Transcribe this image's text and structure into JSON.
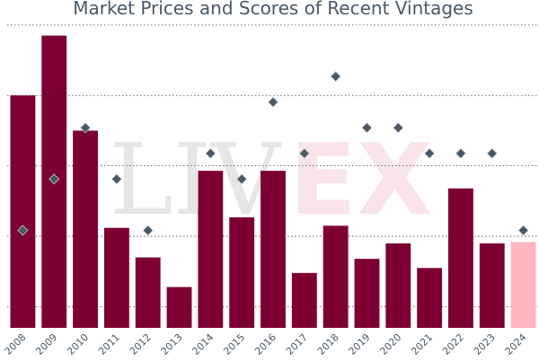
{
  "chart_data": {
    "type": "bar",
    "title": "Market Prices and Scores of Recent Vintages",
    "xlabel": "",
    "ylabel": "",
    "categories": [
      "2008",
      "2009",
      "2010",
      "2011",
      "2012",
      "2013",
      "2014",
      "2015",
      "2016",
      "2017",
      "2018",
      "2019",
      "2020",
      "2021",
      "2022",
      "2023",
      "2024"
    ],
    "series": [
      {
        "type": "bar",
        "values": [
          300,
          385,
          250,
          112,
          70,
          28,
          193,
          127,
          193,
          48,
          115,
          68,
          90,
          55,
          168,
          90,
          92
        ],
        "colors": [
          "#7d0033",
          "#7d0033",
          "#7d0033",
          "#7d0033",
          "#7d0033",
          "#7d0033",
          "#7d0033",
          "#7d0033",
          "#7d0033",
          "#7d0033",
          "#7d0033",
          "#7d0033",
          "#7d0033",
          "#7d0033",
          "#7d0033",
          "#7d0033",
          "#ffb6c1"
        ]
      },
      {
        "type": "scatter",
        "marker": "diamond",
        "values": [
          93,
          95,
          97,
          95,
          93,
          null,
          96,
          95,
          98,
          96,
          99,
          97,
          97,
          96,
          96,
          96,
          93
        ]
      }
    ],
    "y_price_range": [
      -30,
      410
    ],
    "y_score_range": [
      89.2,
      101.28
    ],
    "grid": "horizontal dotted",
    "watermark": "LIV-EX"
  },
  "colors": {
    "bar": "#7d0033",
    "bar_highlight": "#ffb6c1",
    "marker": "#4a5866",
    "grid": "#444444",
    "text": "#4a5866"
  }
}
